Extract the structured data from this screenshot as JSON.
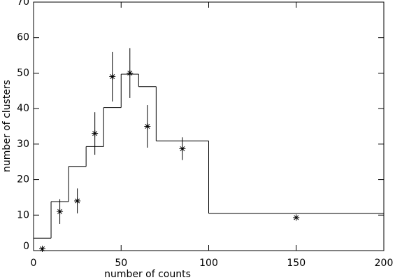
{
  "chart_data": {
    "type": "errorbar",
    "xlabel": "number of counts",
    "ylabel": "number of clusters",
    "x": [
      5,
      15,
      25,
      35,
      45,
      55,
      65,
      85,
      150
    ],
    "values": [
      0.5,
      11,
      14,
      33,
      49,
      50,
      35,
      28.7,
      9.3
    ],
    "errors": [
      0,
      3.5,
      3.5,
      6,
      7,
      7,
      6,
      3.2,
      0
    ],
    "histogram": {
      "bins": [
        0,
        10,
        20,
        30,
        40,
        50,
        60,
        70,
        100,
        200
      ],
      "counts": [
        3.5,
        13.8,
        23.7,
        29.3,
        40.3,
        49.7,
        46.2,
        30.9,
        10.5
      ]
    },
    "xlim": [
      0,
      200
    ],
    "xticks": [
      0,
      50,
      100,
      150,
      200
    ],
    "ylim": [
      0,
      70
    ],
    "yticks": [
      0,
      10,
      20,
      30,
      40,
      50,
      60,
      70
    ]
  }
}
